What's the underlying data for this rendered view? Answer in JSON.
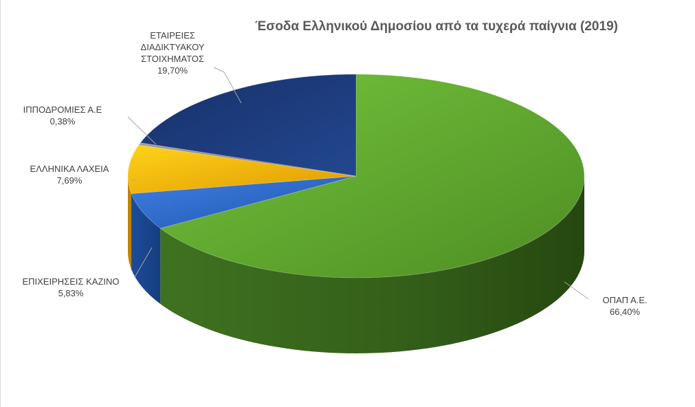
{
  "chart_data": {
    "type": "pie",
    "title": "Έσοδα Ελληνικού Δημοσίου από τα τυχερά παίγνια (2019)",
    "slices": [
      {
        "label": "ΟΠΑΠ Α.Ε.",
        "value": 66.4,
        "display": "66,40%",
        "color": "#5fa52e"
      },
      {
        "label": "ΕΠΙΧΕΙΡΗΣΕΙΣ ΚΑΖΙΝΟ",
        "value": 5.83,
        "display": "5,83%",
        "color": "#2e67c8"
      },
      {
        "label": "ΕΛΛΗΝΙΚΑ ΛΑΧΕΙΑ",
        "value": 7.69,
        "display": "7,69%",
        "color": "#f2b705"
      },
      {
        "label": "ΙΠΠΟΔΡΟΜΙΕΣ Α.Ε",
        "value": 0.38,
        "display": "0,38%",
        "color": "#8a8a8a"
      },
      {
        "label": "ΕΤΑΙΡΕΙΕΣ ΔΙΑΔΙΚΤΥΑΚΟΥ ΣΤΟΙΧΗΜΑΤΟΣ",
        "label_lines": [
          "ΕΤΑΙΡΕΙΕΣ",
          "ΔΙΑΔΙΚΤΥΑΚΟΥ",
          "ΣΤΟΙΧΗΜΑΤΟΣ"
        ],
        "value": 19.7,
        "display": "19,70%",
        "color": "#1f3f7a"
      }
    ],
    "legend": "none",
    "style": "3d-pie"
  }
}
